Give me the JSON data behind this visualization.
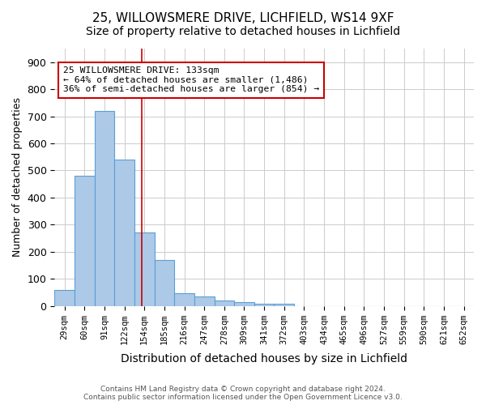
{
  "title1": "25, WILLOWSMERE DRIVE, LICHFIELD, WS14 9XF",
  "title2": "Size of property relative to detached houses in Lichfield",
  "xlabel": "Distribution of detached houses by size in Lichfield",
  "ylabel": "Number of detached properties",
  "footer": "Contains HM Land Registry data © Crown copyright and database right 2024.\nContains public sector information licensed under the Open Government Licence v3.0.",
  "bin_labels": [
    "29sqm",
    "60sqm",
    "91sqm",
    "122sqm",
    "154sqm",
    "185sqm",
    "216sqm",
    "247sqm",
    "278sqm",
    "309sqm",
    "341sqm",
    "372sqm",
    "403sqm",
    "434sqm",
    "465sqm",
    "496sqm",
    "527sqm",
    "559sqm",
    "590sqm",
    "621sqm",
    "652sqm"
  ],
  "bin_values": [
    60,
    480,
    720,
    540,
    270,
    170,
    47,
    35,
    20,
    15,
    8,
    8,
    0,
    0,
    0,
    0,
    0,
    0,
    0,
    0,
    0
  ],
  "bar_color": "#adc9e8",
  "bar_edge_color": "#5a9fd4",
  "property_line_x": 3.87,
  "property_line_color": "#cc0000",
  "annotation_text": "25 WILLOWSMERE DRIVE: 133sqm\n← 64% of detached houses are smaller (1,486)\n36% of semi-detached houses are larger (854) →",
  "annotation_box_color": "#cc0000",
  "ylim": [
    0,
    950
  ],
  "yticks": [
    0,
    100,
    200,
    300,
    400,
    500,
    600,
    700,
    800,
    900
  ],
  "grid_color": "#cccccc",
  "bg_color": "#ffffff",
  "title_fontsize": 11,
  "subtitle_fontsize": 10
}
